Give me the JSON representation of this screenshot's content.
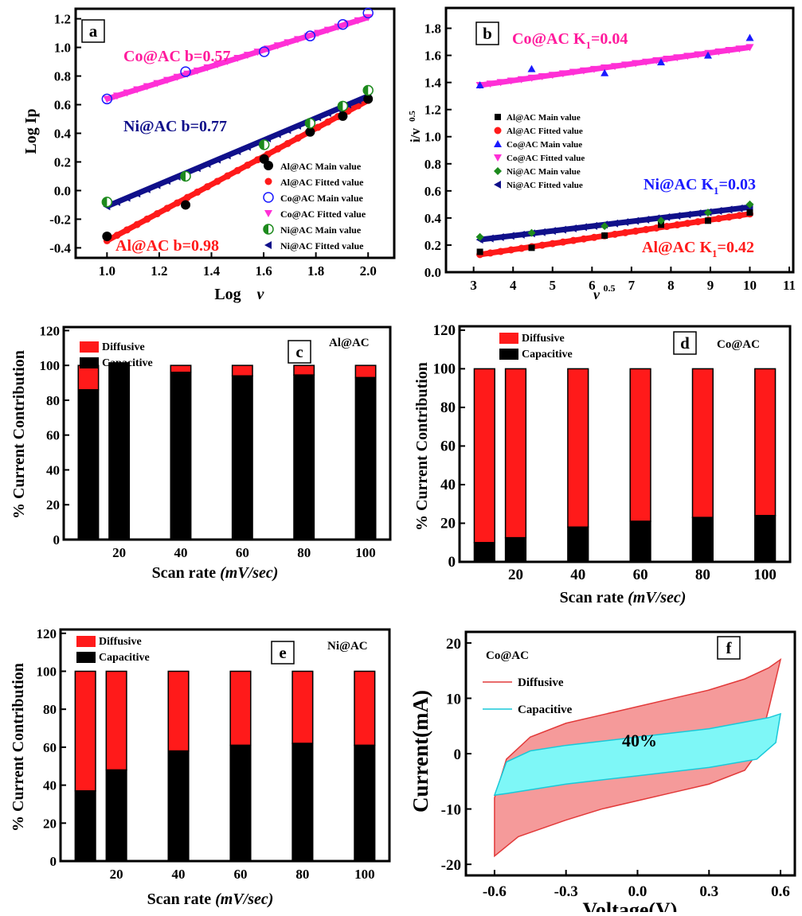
{
  "colors": {
    "black": "#000000",
    "red": "#ff1a1a",
    "blue": "#1a1aff",
    "magenta": "#ff2fd6",
    "pink_text": "#ff1a9c",
    "green": "#1d8a1d",
    "navy": "#10108a",
    "cyan_fill": "#7ef7f7",
    "cyan_edge": "#19c9d9",
    "salmon_fill": "#f59a9a",
    "salmon_edge": "#e23a3a"
  },
  "chart_data": [
    {
      "id": "a",
      "type": "scatter",
      "panel_label": "a",
      "xlabel": "Log",
      "xlabel_italic": "v",
      "ylabel": "Log Ip",
      "xlim": [
        0.88,
        2.1
      ],
      "ylim": [
        -0.47,
        1.27
      ],
      "xticks": [
        1.0,
        1.2,
        1.4,
        1.6,
        1.8,
        2.0
      ],
      "yticks": [
        -0.4,
        -0.2,
        0.0,
        0.2,
        0.4,
        0.6,
        0.8,
        1.0,
        1.2
      ],
      "xtick_labels": [
        "1.0",
        "1.2",
        "1.4",
        "1.6",
        "1.8",
        "2.0"
      ],
      "ytick_labels": [
        "-0.4",
        "-0.2",
        "0.0",
        "0.2",
        "0.4",
        "0.6",
        "0.8",
        "1.0",
        "1.2"
      ],
      "x": [
        1.0,
        1.301,
        1.602,
        1.778,
        1.903,
        2.0
      ],
      "series": [
        {
          "name": "Al@AC Main value",
          "marker": "circle-filled",
          "color": "#000000",
          "values": [
            -0.32,
            -0.1,
            0.22,
            0.41,
            0.52,
            0.64
          ]
        },
        {
          "name": "Al@AC Fitted value",
          "marker": "fit-line",
          "color": "#ff1a1a",
          "fit": [
            -0.35,
            0.63
          ]
        },
        {
          "name": "Co@AC Main value",
          "marker": "circle-open",
          "color": "#1a1aff",
          "values": [
            0.64,
            0.83,
            0.97,
            1.08,
            1.16,
            1.24
          ]
        },
        {
          "name": "Co@AC Fitted value",
          "marker": "fit-line",
          "color": "#ff2fd6",
          "fit": [
            0.64,
            1.21
          ]
        },
        {
          "name": "Ni@AC Main value",
          "marker": "circle-half",
          "color": "#1d8a1d",
          "values": [
            -0.08,
            0.1,
            0.32,
            0.47,
            0.59,
            0.7
          ]
        },
        {
          "name": "Ni@AC Fitted value",
          "marker": "fit-line",
          "color": "#10108a",
          "fit": [
            -0.11,
            0.66
          ]
        }
      ],
      "annotations": [
        {
          "text": "Co@AC b=0.57",
          "color": "#ff1a9c"
        },
        {
          "text": "Ni@AC b=0.77",
          "color": "#10108a"
        },
        {
          "text": "Al@AC b=0.98",
          "color": "#ff1a1a"
        }
      ]
    },
    {
      "id": "b",
      "type": "scatter",
      "panel_label": "b",
      "xlabel": "v",
      "xlabel_sup": "0.5",
      "ylabel": "i/v",
      "ylabel_sup": "0.5",
      "xlim": [
        2.3,
        11.1
      ],
      "ylim": [
        0.0,
        1.95
      ],
      "xticks": [
        3,
        4,
        5,
        6,
        7,
        8,
        9,
        10,
        11
      ],
      "yticks": [
        0.0,
        0.2,
        0.4,
        0.6,
        0.8,
        1.0,
        1.2,
        1.4,
        1.6,
        1.8
      ],
      "xtick_labels": [
        "3",
        "4",
        "5",
        "6",
        "7",
        "8",
        "9",
        "10",
        "11"
      ],
      "ytick_labels": [
        "0.0",
        "0.2",
        "0.4",
        "0.6",
        "0.8",
        "1.0",
        "1.2",
        "1.4",
        "1.6",
        "1.8"
      ],
      "x": [
        3.16,
        4.47,
        6.32,
        7.75,
        8.94,
        10.0
      ],
      "series": [
        {
          "name": "Al@AC Main value",
          "marker": "square",
          "color": "#000000",
          "values": [
            0.15,
            0.18,
            0.27,
            0.35,
            0.38,
            0.44
          ]
        },
        {
          "name": "Al@AC Fitted value",
          "marker": "fit-line",
          "color": "#ff1a1a",
          "fit": [
            0.13,
            0.43
          ]
        },
        {
          "name": "Co@AC Main value",
          "marker": "triangle-up",
          "color": "#1a1aff",
          "values": [
            1.38,
            1.5,
            1.47,
            1.55,
            1.6,
            1.73
          ]
        },
        {
          "name": "Co@AC Fitted value",
          "marker": "fit-line",
          "color": "#ff2fd6",
          "fit": [
            1.38,
            1.66
          ]
        },
        {
          "name": "Ni@AC Main value",
          "marker": "diamond",
          "color": "#1d8a1d",
          "values": [
            0.26,
            0.29,
            0.34,
            0.38,
            0.44,
            0.5
          ]
        },
        {
          "name": "Ni@AC Fitted value",
          "marker": "fit-line",
          "color": "#10108a",
          "fit": [
            0.24,
            0.48
          ]
        }
      ],
      "annotations": [
        {
          "text": "Co@AC K",
          "sub": "1",
          "tail": "=0.04",
          "color": "#ff1a9c"
        },
        {
          "text": "Ni@AC K",
          "sub": "1",
          "tail": "=0.03",
          "color": "#1a1aff"
        },
        {
          "text": "Al@AC K",
          "sub": "1",
          "tail": "=0.42",
          "color": "#ff1a1a"
        }
      ]
    },
    {
      "id": "c",
      "type": "bar",
      "stacked": true,
      "panel_label": "c",
      "inset_title": "Al@AC",
      "xlabel": "Scan rate",
      "xlabel_unit": "(mV/sec)",
      "ylabel": "% Current Contribution",
      "ylim": [
        0,
        122
      ],
      "yticks": [
        0,
        20,
        40,
        60,
        80,
        100,
        120
      ],
      "categories": [
        "",
        "20",
        "40",
        "60",
        "80",
        "100"
      ],
      "category_x": [
        10,
        20,
        40,
        60,
        80,
        100
      ],
      "xlim": [
        2,
        108
      ],
      "series": [
        {
          "name": "Capacitive",
          "color": "#000000",
          "values": [
            86,
            101.5,
            96,
            94,
            94.5,
            93
          ]
        },
        {
          "name": "Diffusive",
          "color": "#ff1a1a",
          "values": [
            14,
            0,
            4,
            6,
            5.5,
            7
          ]
        }
      ]
    },
    {
      "id": "d",
      "type": "bar",
      "stacked": true,
      "panel_label": "d",
      "inset_title": "Co@AC",
      "xlabel": "Scan rate",
      "xlabel_unit": "(mV/sec)",
      "ylabel": "% Current Contribution",
      "ylim": [
        0,
        122
      ],
      "yticks": [
        0,
        20,
        40,
        60,
        80,
        100,
        120
      ],
      "categories": [
        "",
        "20",
        "40",
        "60",
        "80",
        "100"
      ],
      "category_x": [
        10,
        20,
        40,
        60,
        80,
        100
      ],
      "xlim": [
        2,
        108
      ],
      "series": [
        {
          "name": "Capacitive",
          "color": "#000000",
          "values": [
            10,
            12.5,
            18,
            21,
            23,
            24
          ]
        },
        {
          "name": "Diffusive",
          "color": "#ff1a1a",
          "values": [
            90,
            87.5,
            82,
            79,
            77,
            76
          ]
        }
      ]
    },
    {
      "id": "e",
      "type": "bar",
      "stacked": true,
      "panel_label": "e",
      "inset_title": "Ni@AC",
      "xlabel": "Scan rate",
      "xlabel_unit": "(mV/sec)",
      "ylabel": "% Current Contribution",
      "ylim": [
        0,
        122
      ],
      "yticks": [
        0,
        20,
        40,
        60,
        80,
        100,
        120
      ],
      "categories": [
        "",
        "20",
        "40",
        "60",
        "80",
        "100"
      ],
      "category_x": [
        10,
        20,
        40,
        60,
        80,
        100
      ],
      "xlim": [
        2,
        108
      ],
      "series": [
        {
          "name": "Capacitive",
          "color": "#000000",
          "values": [
            37,
            48,
            58,
            61,
            62,
            61
          ]
        },
        {
          "name": "Diffusive",
          "color": "#ff1a1a",
          "values": [
            63,
            52,
            42,
            39,
            38,
            39
          ]
        }
      ]
    },
    {
      "id": "f",
      "type": "area",
      "panel_label": "f",
      "inset_title": "Co@AC",
      "xlabel": "Voltage(V)",
      "ylabel": "Current(mA)",
      "xlim": [
        -0.72,
        0.66
      ],
      "ylim": [
        -22,
        22
      ],
      "xticks": [
        -0.6,
        -0.3,
        0.0,
        0.3,
        0.6
      ],
      "yticks": [
        -20,
        -10,
        0,
        10,
        20
      ],
      "xtick_labels": [
        "-0.6",
        "-0.3",
        "0.0",
        "0.3",
        "0.6"
      ],
      "ytick_labels": [
        "-20",
        "-10",
        "0",
        "10",
        "20"
      ],
      "center_label": "40%",
      "series": [
        {
          "name": "Diffusive",
          "color": "#f59a9a",
          "edge": "#e23a3a",
          "upper": {
            "x": [
              -0.6,
              -0.55,
              -0.45,
              -0.3,
              -0.15,
              0.0,
              0.15,
              0.3,
              0.45,
              0.55,
              0.6
            ],
            "y": [
              -8,
              -1,
              3,
              5.5,
              7,
              8.5,
              10,
              11.5,
              13.5,
              15.5,
              17
            ]
          },
          "lower": {
            "x": [
              -0.6,
              -0.5,
              -0.3,
              -0.15,
              0.0,
              0.15,
              0.3,
              0.45,
              0.5,
              0.55,
              0.6
            ],
            "y": [
              -18.5,
              -15,
              -12,
              -10,
              -8.5,
              -7,
              -5.5,
              -3,
              0,
              8,
              17
            ]
          }
        },
        {
          "name": "Capacitive",
          "color": "#7ef7f7",
          "edge": "#19c9d9",
          "upper": {
            "x": [
              -0.6,
              -0.55,
              -0.45,
              -0.3,
              0.0,
              0.3,
              0.55,
              0.6
            ],
            "y": [
              -7.5,
              -1.5,
              0.5,
              1.5,
              3,
              4.5,
              6.5,
              7.2
            ]
          },
          "lower": {
            "x": [
              -0.6,
              -0.55,
              -0.3,
              0.0,
              0.3,
              0.5,
              0.58,
              0.6
            ],
            "y": [
              -7.5,
              -7.2,
              -5.5,
              -4,
              -2.5,
              -1,
              2,
              7.2
            ]
          }
        }
      ]
    }
  ]
}
